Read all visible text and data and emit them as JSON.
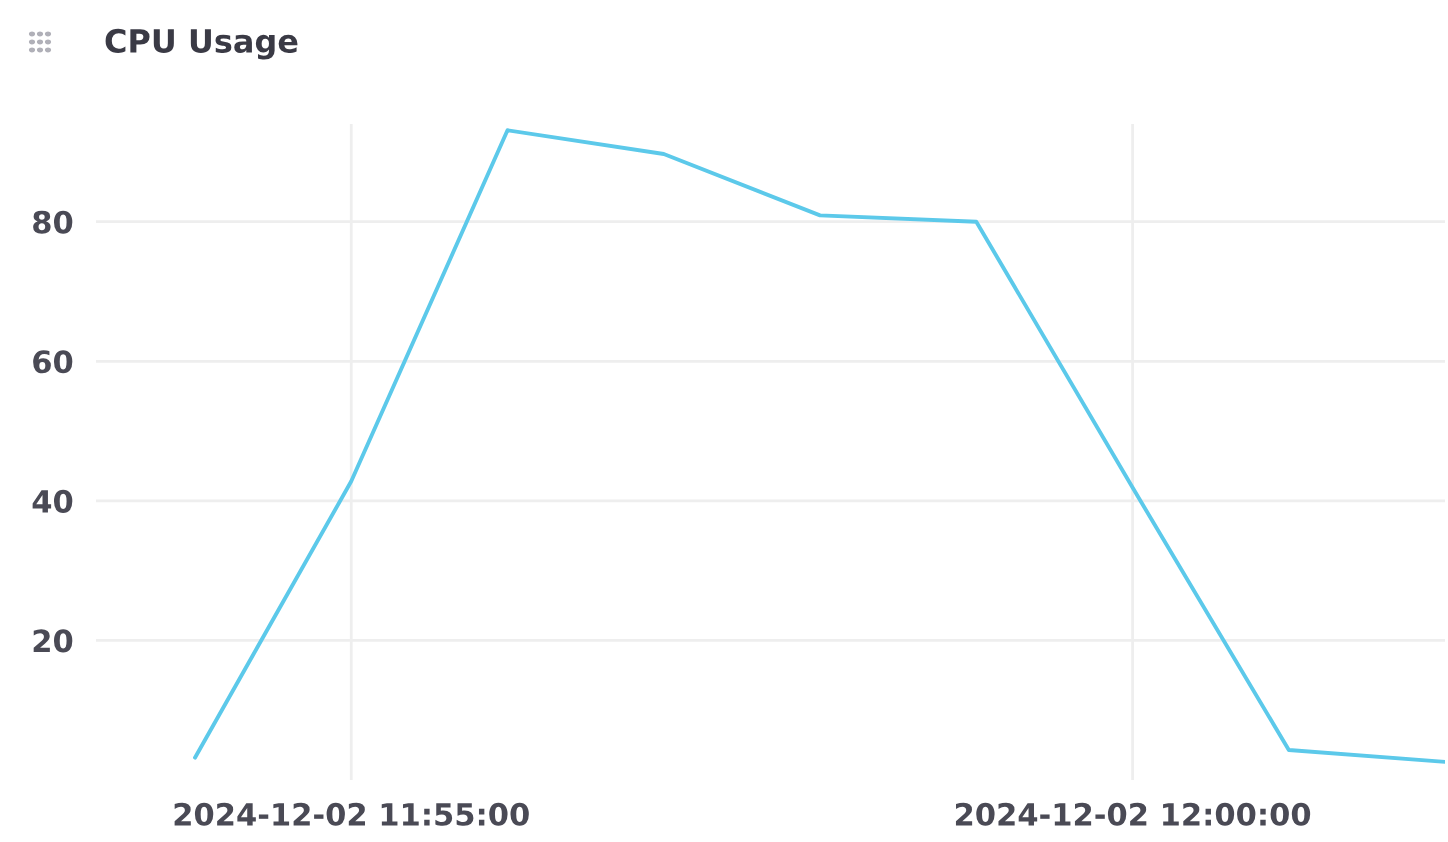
{
  "chart_data": {
    "type": "line",
    "title": "CPU Usage",
    "x": [
      "2024-12-02T11:54:00",
      "2024-12-02T11:55:00",
      "2024-12-02T11:56:00",
      "2024-12-02T11:57:00",
      "2024-12-02T11:58:00",
      "2024-12-02T11:59:00",
      "2024-12-02T12:00:00",
      "2024-12-02T12:01:00",
      "2024-12-02T12:02:00"
    ],
    "series": [
      {
        "color": "#5cc9ea",
        "values": [
          3.2,
          42.8,
          93.1,
          89.7,
          80.9,
          80.0,
          41.9,
          4.3,
          2.6
        ]
      }
    ],
    "xlim": [
      "2024-12-02T11:53:22",
      "2024-12-02T12:02:00"
    ],
    "xticks": [
      {
        "value": "2024-12-02T11:55:00",
        "label": "2024-12-02 11:55:00"
      },
      {
        "value": "2024-12-02T12:00:00",
        "label": "2024-12-02 12:00:00"
      }
    ],
    "ylim": [
      0,
      94
    ],
    "yticks": [
      20,
      40,
      60,
      80
    ],
    "grid": true,
    "marker": "none",
    "line_style": "solid"
  }
}
